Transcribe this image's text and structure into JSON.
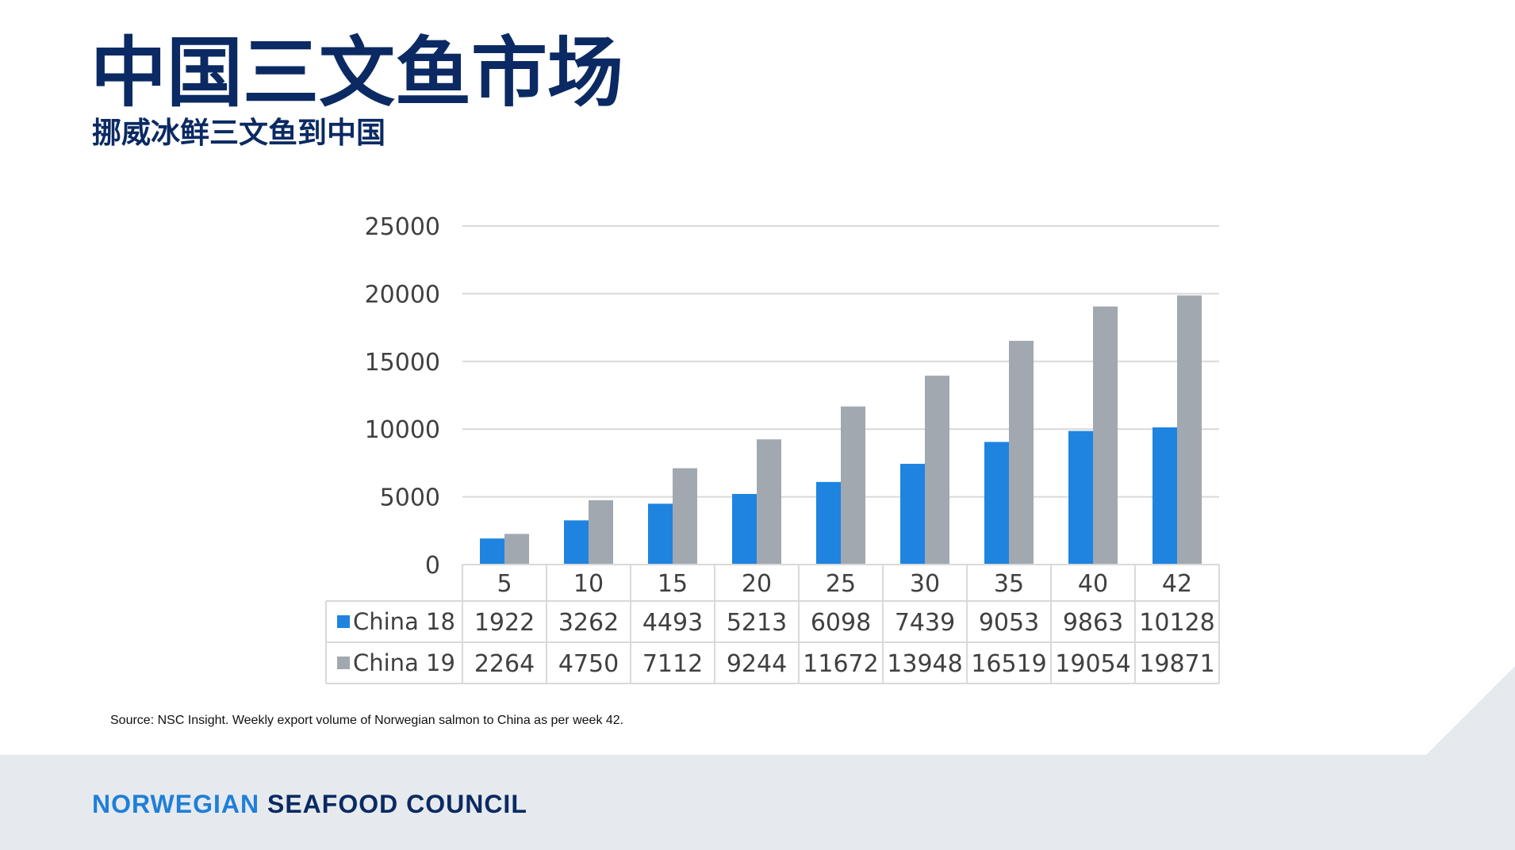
{
  "header": {
    "title": "中国三文鱼市场",
    "subtitle": "挪威冰鲜三文鱼到中国"
  },
  "chart_data": {
    "type": "bar",
    "title": "",
    "xlabel": "",
    "ylabel": "",
    "ylim": [
      0,
      25000
    ],
    "yticks": [
      "0",
      "5000",
      "10000",
      "15000",
      "20000",
      "25000"
    ],
    "grid": true,
    "legend": "data-table-left",
    "categories": [
      "5",
      "10",
      "15",
      "20",
      "25",
      "30",
      "35",
      "40",
      "42"
    ],
    "series": [
      {
        "name": "China 18",
        "color": "#1e84e0",
        "values": [
          1922,
          3262,
          4493,
          5213,
          6098,
          7439,
          9053,
          9863,
          10128
        ]
      },
      {
        "name": "China 19",
        "color": "#a2a8b0",
        "values": [
          2264,
          4750,
          7112,
          9244,
          11672,
          13948,
          16519,
          19054,
          19871
        ]
      }
    ]
  },
  "source_note": "Source: NSC Insight. Weekly export volume of Norwegian salmon to China as per week 42.",
  "footer": {
    "brand_part1": "NORWEGIAN",
    "brand_part2": "SEAFOOD COUNCIL"
  }
}
